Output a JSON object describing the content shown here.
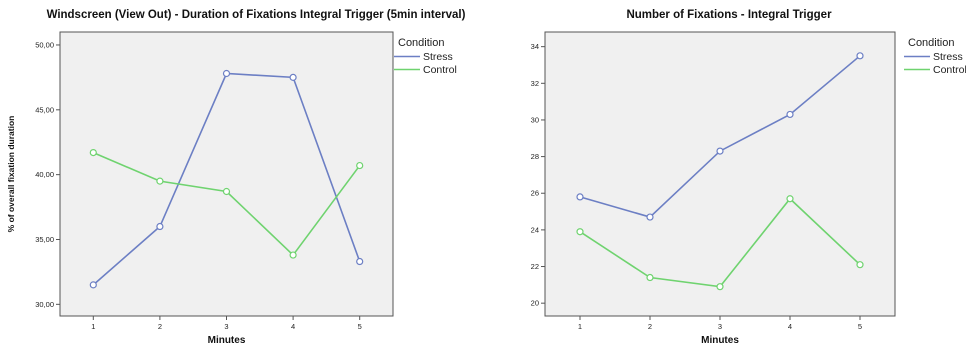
{
  "chart_data": [
    {
      "type": "line",
      "title": "Windscreen (View Out) - Duration of Fixations Integral Trigger (5min interval)",
      "xlabel": "Minutes",
      "ylabel": "% of overall fixation duration",
      "categories": [
        "1",
        "2",
        "3",
        "4",
        "5"
      ],
      "ylim": [
        29.1,
        51.0
      ],
      "yticks": [
        "30,00",
        "35,00",
        "40,00",
        "45,00",
        "50,00"
      ],
      "ytick_values": [
        30,
        35,
        40,
        45,
        50
      ],
      "legend_title": "Condition",
      "legend_position": "right",
      "grid": false,
      "series": [
        {
          "name": "Stress",
          "color": "#6c7fc4",
          "values": [
            31.5,
            36.0,
            47.8,
            47.5,
            33.3
          ]
        },
        {
          "name": "Control",
          "color": "#6fd36f",
          "values": [
            41.7,
            39.5,
            38.7,
            33.8,
            40.7
          ]
        }
      ]
    },
    {
      "type": "line",
      "title": "Number of Fixations - Integral Trigger",
      "xlabel": "Minutes",
      "ylabel": "",
      "categories": [
        "1",
        "2",
        "3",
        "4",
        "5"
      ],
      "ylim": [
        19.3,
        34.8
      ],
      "yticks": [
        "20",
        "22",
        "24",
        "26",
        "28",
        "30",
        "32",
        "34"
      ],
      "ytick_values": [
        20,
        22,
        24,
        26,
        28,
        30,
        32,
        34
      ],
      "legend_title": "Condition",
      "legend_position": "right",
      "grid": false,
      "series": [
        {
          "name": "Stress",
          "color": "#6c7fc4",
          "values": [
            25.8,
            24.7,
            28.3,
            30.3,
            33.5
          ]
        },
        {
          "name": "Control",
          "color": "#6fd36f",
          "values": [
            23.9,
            21.4,
            20.9,
            25.7,
            22.1
          ]
        }
      ]
    }
  ]
}
